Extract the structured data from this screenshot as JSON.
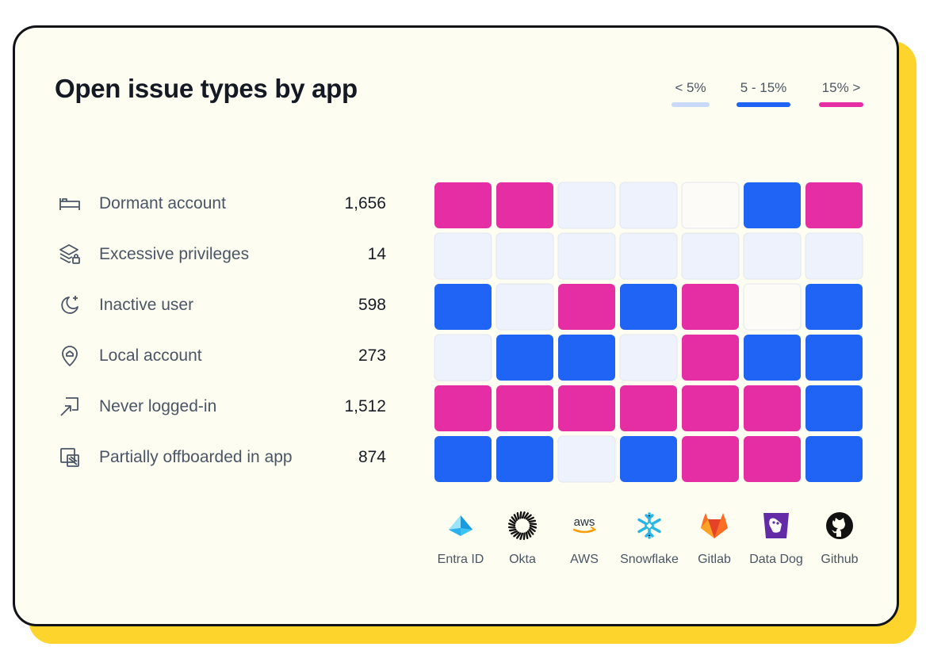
{
  "chart_data": {
    "type": "heatmap",
    "title": "Open issue types by app",
    "legend": [
      {
        "label": "< 5%",
        "color": "#c9d9f8"
      },
      {
        "label": "5 - 15%",
        "color": "#1f64f5"
      },
      {
        "label": "15% >",
        "color": "#e52ea4"
      }
    ],
    "rows": [
      {
        "label": "Dormant account",
        "value": "1,656",
        "icon": "bed-icon"
      },
      {
        "label": "Excessive privileges",
        "value": "14",
        "icon": "layers-lock-icon"
      },
      {
        "label": "Inactive user",
        "value": "598",
        "icon": "moon-sparkle-icon"
      },
      {
        "label": "Local account",
        "value": "273",
        "icon": "location-home-icon"
      },
      {
        "label": "Never logged-in",
        "value": "1,512",
        "icon": "login-arrow-icon"
      },
      {
        "label": "Partially offboarded in app",
        "value": "874",
        "icon": "offboard-icon"
      }
    ],
    "columns": [
      {
        "label": "Entra ID",
        "icon": "entra-id-logo"
      },
      {
        "label": "Okta",
        "icon": "okta-logo"
      },
      {
        "label": "AWS",
        "icon": "aws-logo"
      },
      {
        "label": "Snowflake",
        "icon": "snowflake-logo"
      },
      {
        "label": "Gitlab",
        "icon": "gitlab-logo"
      },
      {
        "label": "Data Dog",
        "icon": "datadog-logo"
      },
      {
        "label": "Github",
        "icon": "github-logo"
      }
    ],
    "cell_levels": [
      [
        "high",
        "high",
        "low",
        "low",
        "none",
        "mid",
        "high"
      ],
      [
        "low",
        "low",
        "low",
        "low",
        "low",
        "low",
        "low"
      ],
      [
        "mid",
        "low",
        "high",
        "mid",
        "high",
        "none",
        "mid"
      ],
      [
        "low",
        "mid",
        "mid",
        "low",
        "high",
        "mid",
        "mid"
      ],
      [
        "high",
        "high",
        "high",
        "high",
        "high",
        "high",
        "mid"
      ],
      [
        "mid",
        "mid",
        "low",
        "mid",
        "high",
        "high",
        "mid"
      ]
    ],
    "level_colors": {
      "high": "#e52ea4",
      "mid": "#1f64f5",
      "low": "#edf2fc",
      "none": "#fdfbf8"
    }
  }
}
